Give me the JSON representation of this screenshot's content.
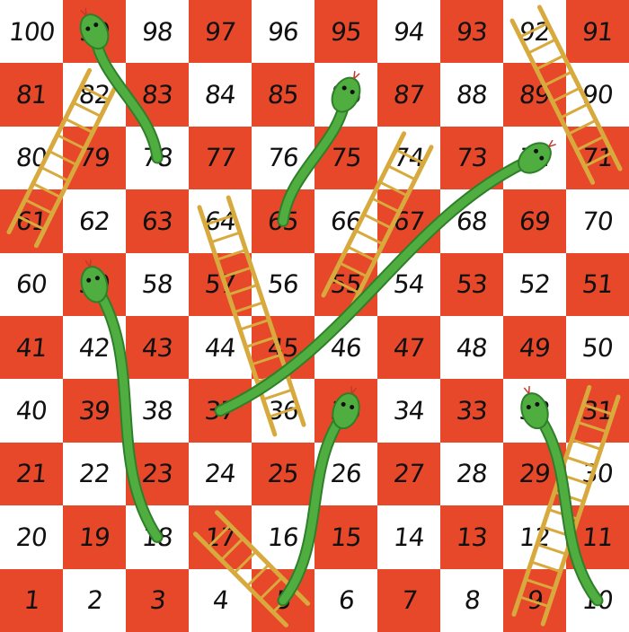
{
  "board": {
    "colors": {
      "red": "#e8482a",
      "white": "#ffffff",
      "ladder": "#d8a93c",
      "snake": "#4fae3f",
      "snake_dark": "#2f7f2a"
    },
    "rows": [
      [
        100,
        99,
        98,
        97,
        96,
        95,
        94,
        93,
        92,
        91
      ],
      [
        81,
        82,
        83,
        84,
        85,
        86,
        87,
        88,
        89,
        90
      ],
      [
        80,
        79,
        78,
        77,
        76,
        75,
        74,
        73,
        72,
        71
      ],
      [
        61,
        62,
        63,
        64,
        65,
        66,
        67,
        68,
        69,
        70
      ],
      [
        60,
        59,
        58,
        57,
        56,
        55,
        54,
        53,
        52,
        51
      ],
      [
        41,
        42,
        43,
        44,
        45,
        46,
        47,
        48,
        49,
        50
      ],
      [
        40,
        39,
        38,
        37,
        36,
        35,
        34,
        33,
        32,
        31
      ],
      [
        21,
        22,
        23,
        24,
        25,
        26,
        27,
        28,
        29,
        30
      ],
      [
        20,
        19,
        18,
        17,
        16,
        15,
        14,
        13,
        12,
        11
      ],
      [
        1,
        2,
        3,
        4,
        5,
        6,
        7,
        8,
        9,
        10
      ]
    ]
  },
  "ladders": [
    {
      "from": 61,
      "to": 82
    },
    {
      "from": 36,
      "to": 64
    },
    {
      "from": 55,
      "to": 74
    },
    {
      "from": 71,
      "to": 92
    },
    {
      "from": 5,
      "to": 17
    },
    {
      "from": 9,
      "to": 31
    }
  ],
  "snakes": [
    {
      "head": 99,
      "tail": 78
    },
    {
      "head": 86,
      "tail": 65
    },
    {
      "head": 72,
      "tail": 37
    },
    {
      "head": 59,
      "tail": 18
    },
    {
      "head": 35,
      "tail": 5
    },
    {
      "head": 32,
      "tail": 10
    }
  ]
}
